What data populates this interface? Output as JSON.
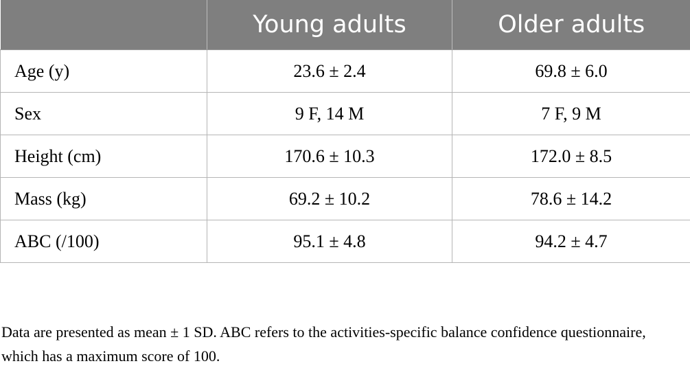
{
  "table": {
    "headers": [
      "",
      "Young adults",
      "Older adults"
    ],
    "rows": [
      [
        "Age (y)",
        "23.6 ± 2.4",
        "69.8 ± 6.0"
      ],
      [
        "Sex",
        "9 F, 14 M",
        "7 F, 9 M"
      ],
      [
        "Height (cm)",
        "170.6 ± 10.3",
        "172.0 ± 8.5"
      ],
      [
        "Mass (kg)",
        "69.2 ± 10.2",
        "78.6 ± 14.2"
      ],
      [
        "ABC (/100)",
        "95.1 ± 4.8",
        "94.2 ± 4.7"
      ]
    ]
  },
  "footnote": "Data are presented as mean ± 1 SD. ABC refers to the activities-specific balance confidence questionnaire, which has a maximum score of 100.",
  "colors": {
    "header_bg": "#7f7f7f",
    "header_text": "#ffffff",
    "border": "#b5b5b5"
  }
}
